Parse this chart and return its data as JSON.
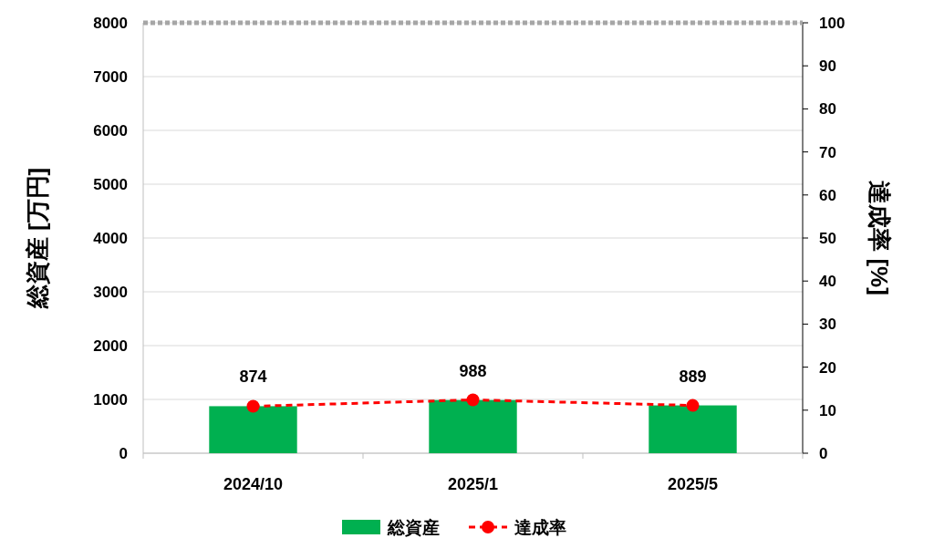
{
  "chart_data": {
    "type": "bar",
    "categories": [
      "2024/10",
      "2025/1",
      "2025/5"
    ],
    "ylabel": "総資産 [万円]",
    "y2label": "達成率 [%]",
    "ylim": [
      0,
      8000
    ],
    "yticks": [
      0,
      1000,
      2000,
      3000,
      4000,
      5000,
      6000,
      7000,
      8000
    ],
    "y2lim": [
      0,
      100
    ],
    "y2ticks": [
      0,
      10,
      20,
      30,
      40,
      50,
      60,
      70,
      80,
      90,
      100
    ],
    "grid": "y",
    "legend": "bottom",
    "series": [
      {
        "name": "総資産",
        "color": "#00b050",
        "values": [
          874,
          988,
          889
        ],
        "value_labels": [
          "874",
          "988",
          "889"
        ]
      },
      {
        "name": "達成率",
        "type": "line",
        "axis": "y2",
        "color": "#ff0000",
        "values": [
          10.9,
          12.4,
          11.1
        ],
        "marker": "circle",
        "line_style": "dashed"
      }
    ],
    "ref_lines": [
      {
        "axis": "y2",
        "value": 100,
        "color": "#a6a6a6",
        "line_style": "dotted"
      }
    ]
  }
}
